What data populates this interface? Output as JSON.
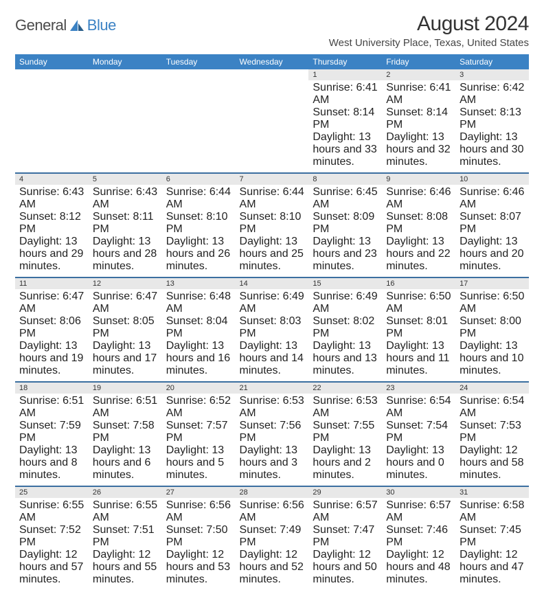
{
  "brand": {
    "part1": "General",
    "part2": "Blue"
  },
  "title": "August 2024",
  "location": "West University Place, Texas, United States",
  "colors": {
    "header_bg": "#3b82c4",
    "daynum_bg": "#e8e8e8",
    "border": "#3b6fa0"
  },
  "day_headers": [
    "Sunday",
    "Monday",
    "Tuesday",
    "Wednesday",
    "Thursday",
    "Friday",
    "Saturday"
  ],
  "weeks": [
    {
      "days": [
        {
          "num": "",
          "sunrise": "",
          "sunset": "",
          "daylight": ""
        },
        {
          "num": "",
          "sunrise": "",
          "sunset": "",
          "daylight": ""
        },
        {
          "num": "",
          "sunrise": "",
          "sunset": "",
          "daylight": ""
        },
        {
          "num": "",
          "sunrise": "",
          "sunset": "",
          "daylight": ""
        },
        {
          "num": "1",
          "sunrise": "Sunrise: 6:41 AM",
          "sunset": "Sunset: 8:14 PM",
          "daylight": "Daylight: 13 hours and 33 minutes."
        },
        {
          "num": "2",
          "sunrise": "Sunrise: 6:41 AM",
          "sunset": "Sunset: 8:14 PM",
          "daylight": "Daylight: 13 hours and 32 minutes."
        },
        {
          "num": "3",
          "sunrise": "Sunrise: 6:42 AM",
          "sunset": "Sunset: 8:13 PM",
          "daylight": "Daylight: 13 hours and 30 minutes."
        }
      ]
    },
    {
      "days": [
        {
          "num": "4",
          "sunrise": "Sunrise: 6:43 AM",
          "sunset": "Sunset: 8:12 PM",
          "daylight": "Daylight: 13 hours and 29 minutes."
        },
        {
          "num": "5",
          "sunrise": "Sunrise: 6:43 AM",
          "sunset": "Sunset: 8:11 PM",
          "daylight": "Daylight: 13 hours and 28 minutes."
        },
        {
          "num": "6",
          "sunrise": "Sunrise: 6:44 AM",
          "sunset": "Sunset: 8:10 PM",
          "daylight": "Daylight: 13 hours and 26 minutes."
        },
        {
          "num": "7",
          "sunrise": "Sunrise: 6:44 AM",
          "sunset": "Sunset: 8:10 PM",
          "daylight": "Daylight: 13 hours and 25 minutes."
        },
        {
          "num": "8",
          "sunrise": "Sunrise: 6:45 AM",
          "sunset": "Sunset: 8:09 PM",
          "daylight": "Daylight: 13 hours and 23 minutes."
        },
        {
          "num": "9",
          "sunrise": "Sunrise: 6:46 AM",
          "sunset": "Sunset: 8:08 PM",
          "daylight": "Daylight: 13 hours and 22 minutes."
        },
        {
          "num": "10",
          "sunrise": "Sunrise: 6:46 AM",
          "sunset": "Sunset: 8:07 PM",
          "daylight": "Daylight: 13 hours and 20 minutes."
        }
      ]
    },
    {
      "days": [
        {
          "num": "11",
          "sunrise": "Sunrise: 6:47 AM",
          "sunset": "Sunset: 8:06 PM",
          "daylight": "Daylight: 13 hours and 19 minutes."
        },
        {
          "num": "12",
          "sunrise": "Sunrise: 6:47 AM",
          "sunset": "Sunset: 8:05 PM",
          "daylight": "Daylight: 13 hours and 17 minutes."
        },
        {
          "num": "13",
          "sunrise": "Sunrise: 6:48 AM",
          "sunset": "Sunset: 8:04 PM",
          "daylight": "Daylight: 13 hours and 16 minutes."
        },
        {
          "num": "14",
          "sunrise": "Sunrise: 6:49 AM",
          "sunset": "Sunset: 8:03 PM",
          "daylight": "Daylight: 13 hours and 14 minutes."
        },
        {
          "num": "15",
          "sunrise": "Sunrise: 6:49 AM",
          "sunset": "Sunset: 8:02 PM",
          "daylight": "Daylight: 13 hours and 13 minutes."
        },
        {
          "num": "16",
          "sunrise": "Sunrise: 6:50 AM",
          "sunset": "Sunset: 8:01 PM",
          "daylight": "Daylight: 13 hours and 11 minutes."
        },
        {
          "num": "17",
          "sunrise": "Sunrise: 6:50 AM",
          "sunset": "Sunset: 8:00 PM",
          "daylight": "Daylight: 13 hours and 10 minutes."
        }
      ]
    },
    {
      "days": [
        {
          "num": "18",
          "sunrise": "Sunrise: 6:51 AM",
          "sunset": "Sunset: 7:59 PM",
          "daylight": "Daylight: 13 hours and 8 minutes."
        },
        {
          "num": "19",
          "sunrise": "Sunrise: 6:51 AM",
          "sunset": "Sunset: 7:58 PM",
          "daylight": "Daylight: 13 hours and 6 minutes."
        },
        {
          "num": "20",
          "sunrise": "Sunrise: 6:52 AM",
          "sunset": "Sunset: 7:57 PM",
          "daylight": "Daylight: 13 hours and 5 minutes."
        },
        {
          "num": "21",
          "sunrise": "Sunrise: 6:53 AM",
          "sunset": "Sunset: 7:56 PM",
          "daylight": "Daylight: 13 hours and 3 minutes."
        },
        {
          "num": "22",
          "sunrise": "Sunrise: 6:53 AM",
          "sunset": "Sunset: 7:55 PM",
          "daylight": "Daylight: 13 hours and 2 minutes."
        },
        {
          "num": "23",
          "sunrise": "Sunrise: 6:54 AM",
          "sunset": "Sunset: 7:54 PM",
          "daylight": "Daylight: 13 hours and 0 minutes."
        },
        {
          "num": "24",
          "sunrise": "Sunrise: 6:54 AM",
          "sunset": "Sunset: 7:53 PM",
          "daylight": "Daylight: 12 hours and 58 minutes."
        }
      ]
    },
    {
      "days": [
        {
          "num": "25",
          "sunrise": "Sunrise: 6:55 AM",
          "sunset": "Sunset: 7:52 PM",
          "daylight": "Daylight: 12 hours and 57 minutes."
        },
        {
          "num": "26",
          "sunrise": "Sunrise: 6:55 AM",
          "sunset": "Sunset: 7:51 PM",
          "daylight": "Daylight: 12 hours and 55 minutes."
        },
        {
          "num": "27",
          "sunrise": "Sunrise: 6:56 AM",
          "sunset": "Sunset: 7:50 PM",
          "daylight": "Daylight: 12 hours and 53 minutes."
        },
        {
          "num": "28",
          "sunrise": "Sunrise: 6:56 AM",
          "sunset": "Sunset: 7:49 PM",
          "daylight": "Daylight: 12 hours and 52 minutes."
        },
        {
          "num": "29",
          "sunrise": "Sunrise: 6:57 AM",
          "sunset": "Sunset: 7:47 PM",
          "daylight": "Daylight: 12 hours and 50 minutes."
        },
        {
          "num": "30",
          "sunrise": "Sunrise: 6:57 AM",
          "sunset": "Sunset: 7:46 PM",
          "daylight": "Daylight: 12 hours and 48 minutes."
        },
        {
          "num": "31",
          "sunrise": "Sunrise: 6:58 AM",
          "sunset": "Sunset: 7:45 PM",
          "daylight": "Daylight: 12 hours and 47 minutes."
        }
      ]
    }
  ]
}
